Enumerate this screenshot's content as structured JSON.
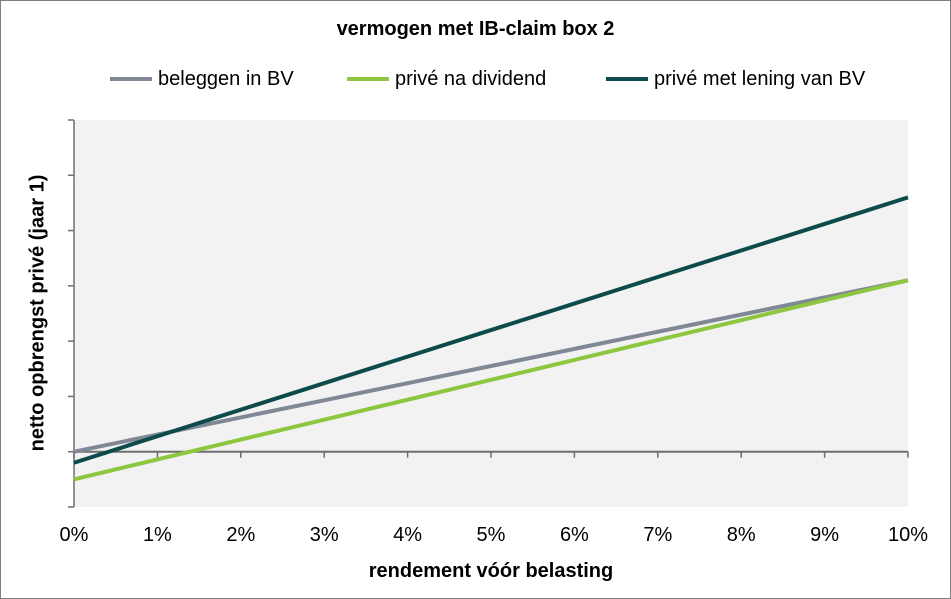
{
  "chart_data": {
    "type": "line",
    "title": "vermogen met IB-claim box 2",
    "xlabel": "rendement vóór belasting",
    "ylabel": "netto opbrengst privé (jaar 1)",
    "x": [
      0,
      1,
      2,
      3,
      4,
      5,
      6,
      7,
      8,
      9,
      10
    ],
    "x_tick_labels": [
      "0%",
      "1%",
      "2%",
      "3%",
      "4%",
      "5%",
      "6%",
      "7%",
      "8%",
      "9%",
      "10%"
    ],
    "xlim": [
      0,
      10
    ],
    "ylim": [
      -1,
      6
    ],
    "y_tick_labels_shown": false,
    "grid": false,
    "legend_position": "top",
    "series": [
      {
        "name": "beleggen in BV",
        "color": "#808896",
        "values": [
          0.0,
          0.31,
          0.62,
          0.93,
          1.24,
          1.55,
          1.86,
          2.17,
          2.48,
          2.79,
          3.1
        ]
      },
      {
        "name": "privé na dividend",
        "color": "#8dc63f",
        "values": [
          -0.5,
          -0.14,
          0.22,
          0.58,
          0.94,
          1.3,
          1.66,
          2.02,
          2.38,
          2.74,
          3.1
        ]
      },
      {
        "name": "privé met lening van BV",
        "color": "#0d4a4a",
        "values": [
          -0.2,
          0.28,
          0.76,
          1.24,
          1.72,
          2.2,
          2.68,
          3.16,
          3.64,
          4.12,
          4.6
        ]
      }
    ]
  }
}
